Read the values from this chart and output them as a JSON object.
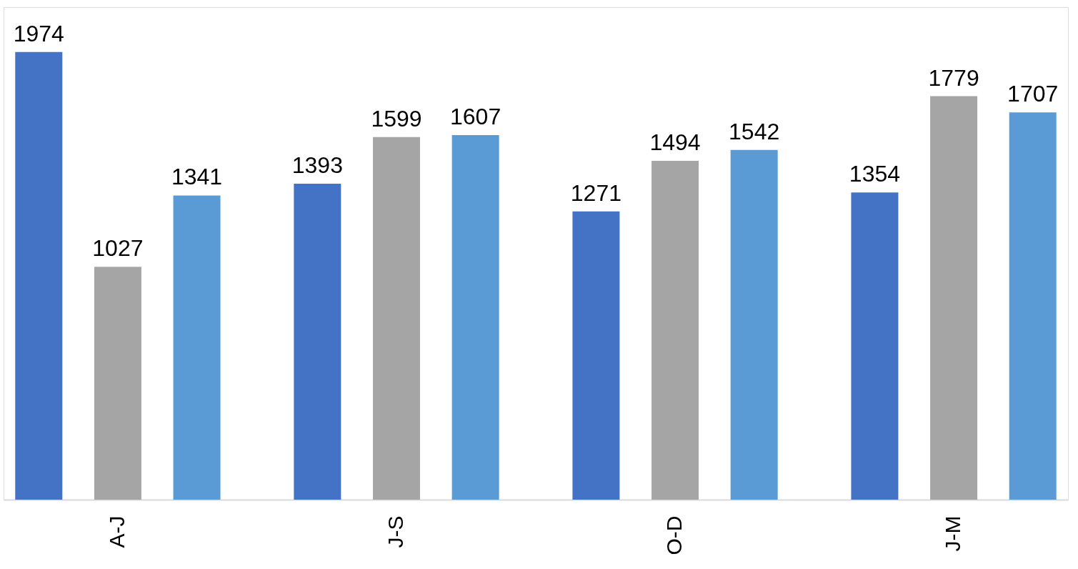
{
  "chart_data": {
    "type": "bar",
    "categories": [
      "A-J",
      "J-S",
      "O-D",
      "J-M"
    ],
    "series": [
      {
        "color": "#4472c4",
        "values": [
          1974,
          1393,
          1271,
          1354
        ]
      },
      {
        "color": "#a5a5a5",
        "values": [
          1027,
          1599,
          1494,
          1779
        ]
      },
      {
        "color": "#5b9bd5",
        "values": [
          1341,
          1607,
          1542,
          1707
        ]
      }
    ],
    "data_labels": true,
    "grid": false,
    "legend": false
  }
}
